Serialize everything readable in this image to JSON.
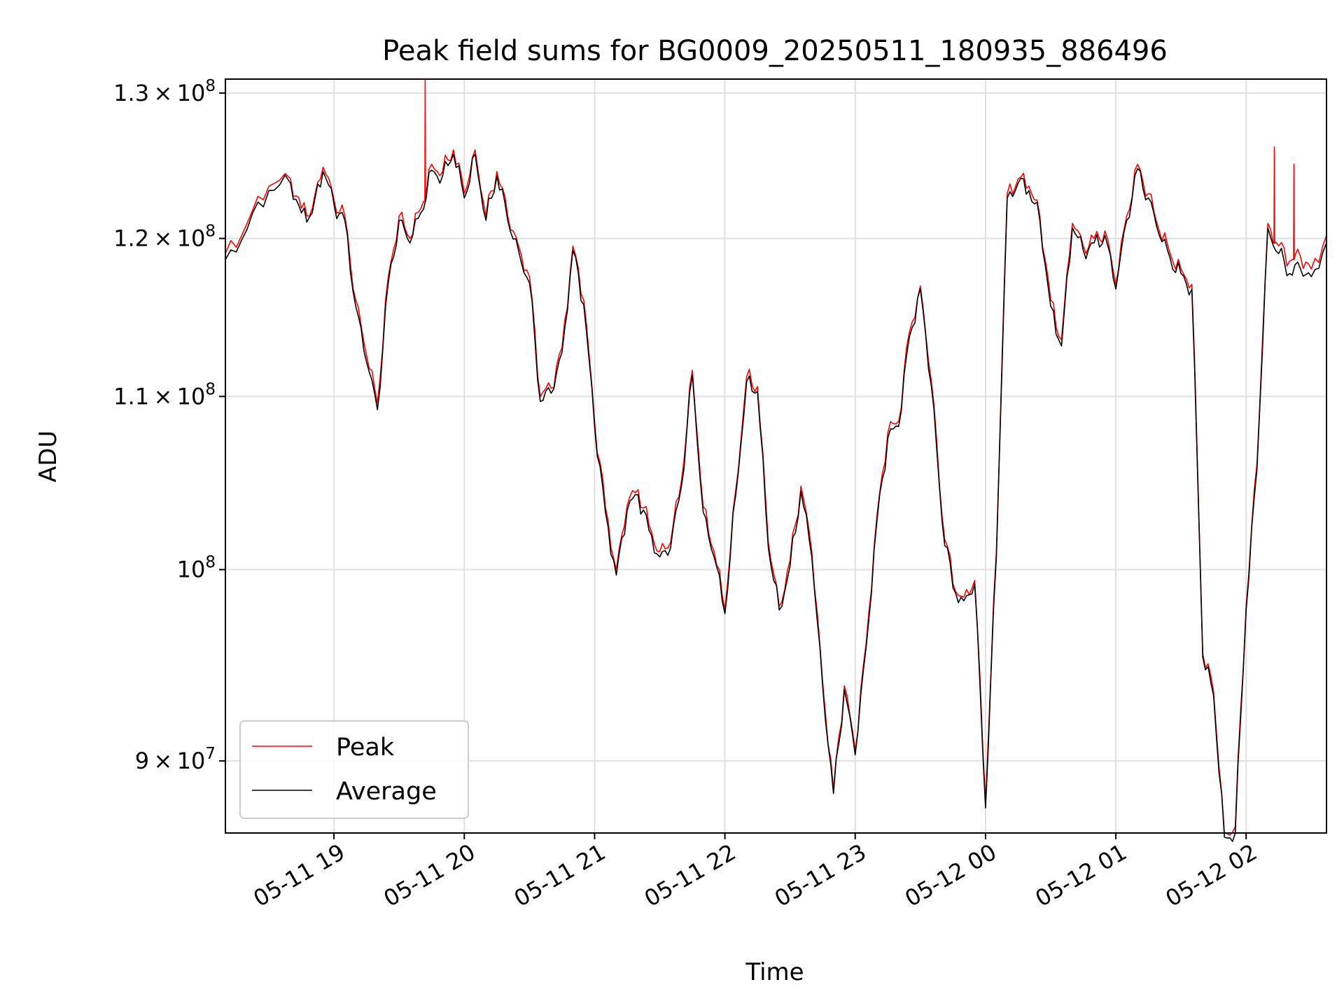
{
  "chart_data": {
    "type": "line",
    "title": "Peak field sums for BG0009_20250511_180935_886496",
    "xlabel": "Time",
    "ylabel": "ADU",
    "yscale": "log",
    "ylim": [
      86500000,
      131000000
    ],
    "xlim": [
      "2025-05-11 18:10",
      "2025-05-12 02:37"
    ],
    "grid": true,
    "legend_position": "lower-left",
    "x_ticks": [
      "05-11 19",
      "05-11 20",
      "05-11 21",
      "05-11 22",
      "05-11 23",
      "05-12 00",
      "05-12 01",
      "05-12 02"
    ],
    "y_ticks": [
      {
        "value": 90000000,
        "mantissa": "9",
        "base": "10",
        "exponent": "7"
      },
      {
        "value": 100000000,
        "mantissa": "",
        "base": "10",
        "exponent": "8"
      },
      {
        "value": 110000000,
        "mantissa": "1.1",
        "base": "10",
        "exponent": "8"
      },
      {
        "value": 120000000,
        "mantissa": "1.2",
        "base": "10",
        "exponent": "8"
      },
      {
        "value": 130000000,
        "mantissa": "1.3",
        "base": "10",
        "exponent": "8"
      }
    ],
    "x": [
      "2025-05-11 18:10",
      "2025-05-11 18:20",
      "2025-05-11 18:30",
      "2025-05-11 18:40",
      "2025-05-11 18:45",
      "2025-05-11 18:50",
      "2025-05-11 18:55",
      "2025-05-11 19:00",
      "2025-05-11 19:05",
      "2025-05-11 19:10",
      "2025-05-11 19:15",
      "2025-05-11 19:20",
      "2025-05-11 19:25",
      "2025-05-11 19:30",
      "2025-05-11 19:35",
      "2025-05-11 19:40",
      "2025-05-11 19:45",
      "2025-05-11 19:50",
      "2025-05-11 19:55",
      "2025-05-11 20:00",
      "2025-05-11 20:05",
      "2025-05-11 20:10",
      "2025-05-11 20:15",
      "2025-05-11 20:20",
      "2025-05-11 20:25",
      "2025-05-11 20:30",
      "2025-05-11 20:35",
      "2025-05-11 20:40",
      "2025-05-11 20:45",
      "2025-05-11 20:50",
      "2025-05-11 20:55",
      "2025-05-11 21:00",
      "2025-05-11 21:05",
      "2025-05-11 21:10",
      "2025-05-11 21:15",
      "2025-05-11 21:20",
      "2025-05-11 21:25",
      "2025-05-11 21:30",
      "2025-05-11 21:35",
      "2025-05-11 21:40",
      "2025-05-11 21:45",
      "2025-05-11 21:50",
      "2025-05-11 21:55",
      "2025-05-11 22:00",
      "2025-05-11 22:05",
      "2025-05-11 22:10",
      "2025-05-11 22:15",
      "2025-05-11 22:20",
      "2025-05-11 22:25",
      "2025-05-11 22:30",
      "2025-05-11 22:35",
      "2025-05-11 22:40",
      "2025-05-11 22:45",
      "2025-05-11 22:50",
      "2025-05-11 22:55",
      "2025-05-11 23:00",
      "2025-05-11 23:05",
      "2025-05-11 23:10",
      "2025-05-11 23:15",
      "2025-05-11 23:20",
      "2025-05-11 23:25",
      "2025-05-11 23:30",
      "2025-05-11 23:35",
      "2025-05-11 23:40",
      "2025-05-11 23:45",
      "2025-05-11 23:50",
      "2025-05-11 23:55",
      "2025-05-12 00:00",
      "2025-05-12 00:05",
      "2025-05-12 00:10",
      "2025-05-12 00:15",
      "2025-05-12 00:20",
      "2025-05-12 00:25",
      "2025-05-12 00:30",
      "2025-05-12 00:35",
      "2025-05-12 00:40",
      "2025-05-12 00:45",
      "2025-05-12 00:50",
      "2025-05-12 00:55",
      "2025-05-12 01:00",
      "2025-05-12 01:05",
      "2025-05-12 01:10",
      "2025-05-12 01:15",
      "2025-05-12 01:20",
      "2025-05-12 01:25",
      "2025-05-12 01:30",
      "2025-05-12 01:35",
      "2025-05-12 01:40",
      "2025-05-12 01:45",
      "2025-05-12 01:50",
      "2025-05-12 01:55",
      "2025-05-12 02:00",
      "2025-05-12 02:05",
      "2025-05-12 02:10",
      "2025-05-12 02:15",
      "2025-05-12 02:20",
      "2025-05-12 02:25",
      "2025-05-12 02:30",
      "2025-05-12 02:37"
    ],
    "series": [
      {
        "name": "Peak",
        "color": "#ff0000",
        "values": [
          119000000,
          121000000,
          123500000,
          124000000,
          122000000,
          122000000,
          124800000,
          122600000,
          121500000,
          116000000,
          112500000,
          109600000,
          117500000,
          121500000,
          120000000,
          122000000,
          125000000,
          124500000,
          126000000,
          123000000,
          126000000,
          121500000,
          124500000,
          121500000,
          119500000,
          117500000,
          110000000,
          110500000,
          113000000,
          119500000,
          116000000,
          108500000,
          103500000,
          100000000,
          103600000,
          104500000,
          102500000,
          101000000,
          101500000,
          105000000,
          111600000,
          103500000,
          101000000,
          97800000,
          104500000,
          111200000,
          110600000,
          101500000,
          98000000,
          100500000,
          104700000,
          101000000,
          94000000,
          88600000,
          93800000,
          90500000,
          96000000,
          103000000,
          107800000,
          108500000,
          114000000,
          116900000,
          111000000,
          103000000,
          99200000,
          98500000,
          99400000,
          88000000,
          101000000,
          123000000,
          124000000,
          123500000,
          121500000,
          116000000,
          113500000,
          121000000,
          119500000,
          120000000,
          120500000,
          117000000,
          121500000,
          125000000,
          123000000,
          120500000,
          119000000,
          118000000,
          117000000,
          95500000,
          93500000,
          86500000,
          86800000,
          98000000,
          106000000,
          121000000,
          119500000,
          118500000,
          118800000,
          118000000,
          120200000
        ],
        "spikes": [
          {
            "x": "2025-05-11 19:42",
            "y": 131000000
          },
          {
            "x": "2025-05-12 02:13",
            "y": 126200000
          },
          {
            "x": "2025-05-12 02:22",
            "y": 125000000
          }
        ]
      },
      {
        "name": "Average",
        "color": "#000000",
        "values": [
          118600000,
          120600000,
          123200000,
          123700000,
          121700000,
          121700000,
          124500000,
          122300000,
          121200000,
          115600000,
          112100000,
          109200000,
          117100000,
          121200000,
          119700000,
          121700000,
          124600000,
          124200000,
          125700000,
          122700000,
          125700000,
          121200000,
          124200000,
          121200000,
          119200000,
          117100000,
          109700000,
          110200000,
          112700000,
          119200000,
          115700000,
          108200000,
          103200000,
          99700000,
          103300000,
          104200000,
          102200000,
          100700000,
          101200000,
          104700000,
          111300000,
          103200000,
          100700000,
          97600000,
          104200000,
          110900000,
          110300000,
          101200000,
          97800000,
          100200000,
          104400000,
          100700000,
          93800000,
          88400000,
          93600000,
          90300000,
          95800000,
          102700000,
          107500000,
          108200000,
          113700000,
          116700000,
          110700000,
          102700000,
          99000000,
          98300000,
          99200000,
          87700000,
          100700000,
          122700000,
          123700000,
          123200000,
          121200000,
          115600000,
          113100000,
          120700000,
          119200000,
          119700000,
          120200000,
          116700000,
          121200000,
          124700000,
          122700000,
          120200000,
          118700000,
          117700000,
          116700000,
          95300000,
          93300000,
          86300000,
          86500000,
          97800000,
          105700000,
          120700000,
          119000000,
          117700000,
          118000000,
          117500000,
          119700000
        ]
      }
    ]
  }
}
